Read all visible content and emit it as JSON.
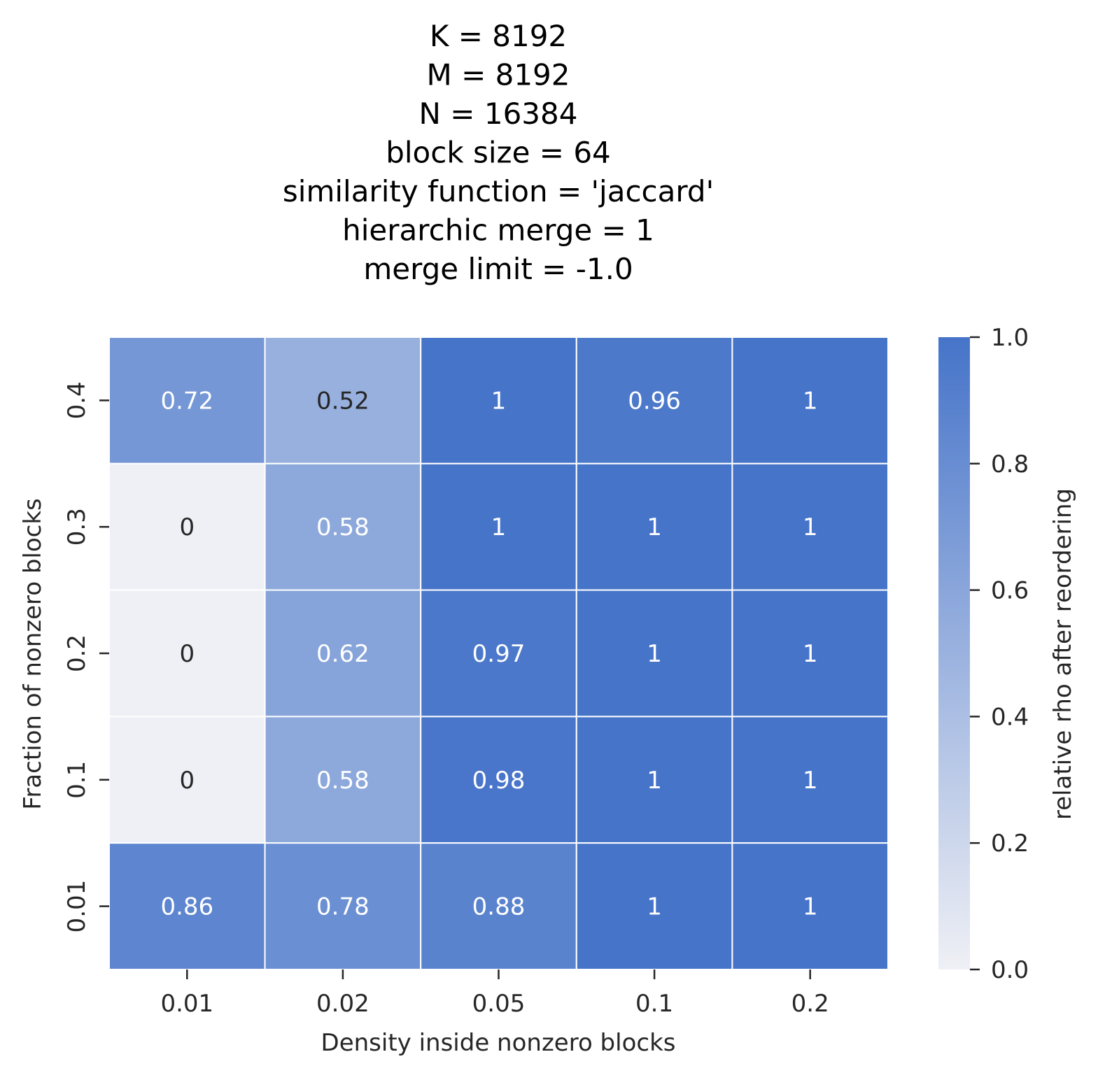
{
  "chart_data": {
    "type": "heatmap",
    "title_lines": [
      "K = 8192",
      "M = 8192",
      "N = 16384",
      "block size = 64",
      "similarity function = 'jaccard'",
      "hierarchic merge = 1",
      "merge limit = -1.0"
    ],
    "xlabel": "Density inside nonzero blocks",
    "ylabel": "Fraction of nonzero blocks",
    "x_categories": [
      "0.01",
      "0.02",
      "0.05",
      "0.1",
      "0.2"
    ],
    "y_categories": [
      "0.4",
      "0.3",
      "0.2",
      "0.1",
      "0.01"
    ],
    "values": [
      [
        0.72,
        0.52,
        1,
        0.96,
        1
      ],
      [
        0,
        0.58,
        1,
        1,
        1
      ],
      [
        0,
        0.62,
        0.97,
        1,
        1
      ],
      [
        0,
        0.58,
        0.98,
        1,
        1
      ],
      [
        0.86,
        0.78,
        0.88,
        1,
        1
      ]
    ],
    "colorbar": {
      "label": "relative rho after reordering",
      "range": [
        0.0,
        1.0
      ],
      "ticks": [
        "0.0",
        "0.2",
        "0.4",
        "0.6",
        "0.8",
        "1.0"
      ],
      "color_low": "#eff0f5",
      "color_high": "#4674c9"
    },
    "annotations": true,
    "grid": false
  }
}
